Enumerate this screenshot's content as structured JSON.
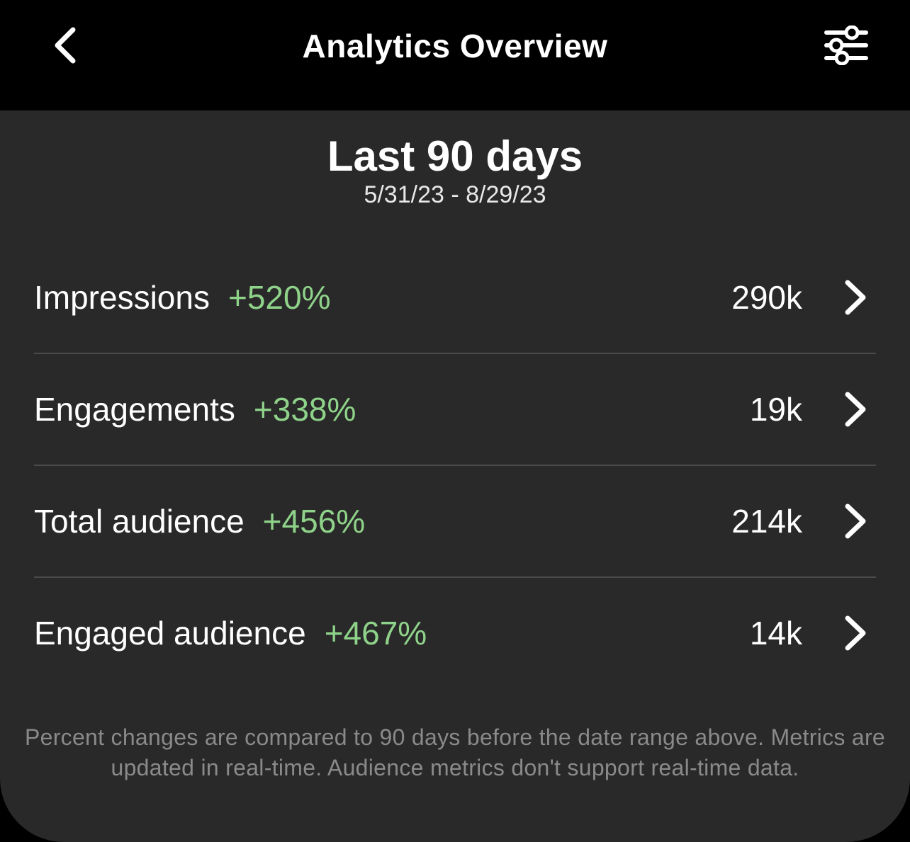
{
  "header": {
    "title": "Analytics Overview",
    "back_icon": "chevron-left-icon",
    "filter_icon": "sliders-icon"
  },
  "range": {
    "title": "Last 90 days",
    "dates": "5/31/23 - 8/29/23"
  },
  "metrics": [
    {
      "name": "Impressions",
      "change": "+520%",
      "value": "290k"
    },
    {
      "name": "Engagements",
      "change": "+338%",
      "value": "19k"
    },
    {
      "name": "Total audience",
      "change": "+456%",
      "value": "214k"
    },
    {
      "name": "Engaged audience",
      "change": "+467%",
      "value": "14k"
    }
  ],
  "footnote": "Percent changes are compared to 90 days before the date range above. Metrics are updated in real-time. Audience metrics don't support real-time data.",
  "colors": {
    "background": "#000000",
    "panel": "#292929",
    "positive_change": "#8fd38a",
    "divider": "#4a4a4a",
    "footnote": "#8a8a8a"
  }
}
